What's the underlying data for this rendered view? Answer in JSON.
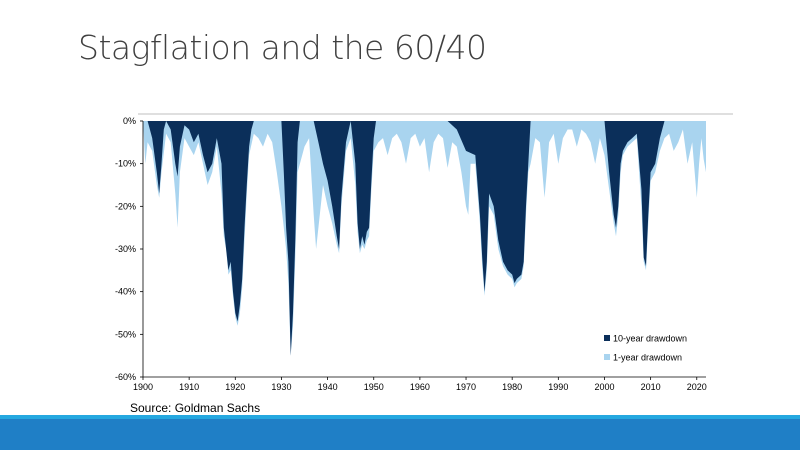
{
  "slide": {
    "title": "Stagflation and the 60/40",
    "source": "Source: Goldman Sachs"
  },
  "chart_data": {
    "type": "area",
    "title": "",
    "xlabel": "",
    "ylabel": "",
    "xlim": [
      1900,
      2022
    ],
    "ylim": [
      -0.6,
      0
    ],
    "x_ticks": [
      {
        "value": 1900,
        "label": "1900"
      },
      {
        "value": 1910,
        "label": "1910"
      },
      {
        "value": 1920,
        "label": "1920"
      },
      {
        "value": 1930,
        "label": "1930"
      },
      {
        "value": 1940,
        "label": "1940"
      },
      {
        "value": 1950,
        "label": "1950"
      },
      {
        "value": 1960,
        "label": "1960"
      },
      {
        "value": 1970,
        "label": "1970"
      },
      {
        "value": 1980,
        "label": "1980"
      },
      {
        "value": 1990,
        "label": "1990"
      },
      {
        "value": 2000,
        "label": "2000"
      },
      {
        "value": 2010,
        "label": "2010"
      },
      {
        "value": 2020,
        "label": "2020"
      }
    ],
    "y_ticks": [
      {
        "value": 0,
        "label": "0%"
      },
      {
        "value": -0.1,
        "label": "-10%"
      },
      {
        "value": -0.2,
        "label": "-20%"
      },
      {
        "value": -0.3,
        "label": "-30%"
      },
      {
        "value": -0.4,
        "label": "-40%"
      },
      {
        "value": -0.5,
        "label": "-50%"
      },
      {
        "value": -0.6,
        "label": "-60%"
      }
    ],
    "grid": false,
    "legend_position": "bottom-right",
    "series": [
      {
        "name": "10-year drawdown",
        "color": "#0b2f5a",
        "points": [
          [
            1900,
            0
          ],
          [
            1901,
            0
          ],
          [
            1902,
            -0.04
          ],
          [
            1903,
            -0.12
          ],
          [
            1903.5,
            -0.17
          ],
          [
            1904,
            -0.1
          ],
          [
            1904.5,
            -0.02
          ],
          [
            1905,
            0
          ],
          [
            1906,
            -0.02
          ],
          [
            1907,
            -0.1
          ],
          [
            1907.5,
            -0.13
          ],
          [
            1908,
            -0.06
          ],
          [
            1909,
            -0.01
          ],
          [
            1910,
            -0.02
          ],
          [
            1911,
            -0.05
          ],
          [
            1912,
            -0.03
          ],
          [
            1913,
            -0.08
          ],
          [
            1914,
            -0.12
          ],
          [
            1915,
            -0.1
          ],
          [
            1916,
            -0.04
          ],
          [
            1917,
            -0.1
          ],
          [
            1917.5,
            -0.25
          ],
          [
            1918,
            -0.3
          ],
          [
            1918.5,
            -0.35
          ],
          [
            1919,
            -0.33
          ],
          [
            1919.5,
            -0.4
          ],
          [
            1920,
            -0.45
          ],
          [
            1920.5,
            -0.47
          ],
          [
            1921,
            -0.43
          ],
          [
            1921.5,
            -0.37
          ],
          [
            1922,
            -0.25
          ],
          [
            1922.5,
            -0.15
          ],
          [
            1923,
            -0.06
          ],
          [
            1923.5,
            -0.02
          ],
          [
            1924,
            0
          ],
          [
            1930,
            0
          ],
          [
            1930.5,
            -0.12
          ],
          [
            1931,
            -0.25
          ],
          [
            1931.5,
            -0.33
          ],
          [
            1932,
            -0.55
          ],
          [
            1932.5,
            -0.45
          ],
          [
            1933,
            -0.28
          ],
          [
            1933.5,
            -0.05
          ],
          [
            1934,
            0
          ],
          [
            1937,
            0
          ],
          [
            1938,
            -0.05
          ],
          [
            1939,
            -0.1
          ],
          [
            1940,
            -0.14
          ],
          [
            1941,
            -0.2
          ],
          [
            1942,
            -0.27
          ],
          [
            1942.5,
            -0.3
          ],
          [
            1943,
            -0.18
          ],
          [
            1944,
            -0.05
          ],
          [
            1945,
            0
          ],
          [
            1946,
            -0.1
          ],
          [
            1946.5,
            -0.24
          ],
          [
            1947,
            -0.3
          ],
          [
            1947.5,
            -0.27
          ],
          [
            1948,
            -0.29
          ],
          [
            1948.5,
            -0.26
          ],
          [
            1949,
            -0.25
          ],
          [
            1949.5,
            -0.14
          ],
          [
            1950,
            -0.04
          ],
          [
            1950.5,
            0
          ],
          [
            1966,
            0
          ],
          [
            1968,
            -0.02
          ],
          [
            1970,
            -0.07
          ],
          [
            1972,
            -0.08
          ],
          [
            1973,
            -0.22
          ],
          [
            1973.5,
            -0.32
          ],
          [
            1974,
            -0.4
          ],
          [
            1974.5,
            -0.33
          ],
          [
            1975,
            -0.17
          ],
          [
            1976,
            -0.2
          ],
          [
            1977,
            -0.28
          ],
          [
            1978,
            -0.33
          ],
          [
            1979,
            -0.35
          ],
          [
            1980,
            -0.36
          ],
          [
            1980.5,
            -0.38
          ],
          [
            1981,
            -0.37
          ],
          [
            1982,
            -0.36
          ],
          [
            1982.5,
            -0.33
          ],
          [
            1983,
            -0.2
          ],
          [
            1983.5,
            -0.1
          ],
          [
            1984,
            0
          ],
          [
            2000,
            0
          ],
          [
            2001,
            -0.12
          ],
          [
            2002,
            -0.22
          ],
          [
            2002.5,
            -0.25
          ],
          [
            2003,
            -0.2
          ],
          [
            2003.5,
            -0.1
          ],
          [
            2004,
            -0.07
          ],
          [
            2005,
            -0.05
          ],
          [
            2006,
            -0.04
          ],
          [
            2007,
            -0.03
          ],
          [
            2008,
            -0.16
          ],
          [
            2008.5,
            -0.32
          ],
          [
            2009,
            -0.34
          ],
          [
            2009.5,
            -0.22
          ],
          [
            2010,
            -0.12
          ],
          [
            2011,
            -0.1
          ],
          [
            2012,
            -0.04
          ],
          [
            2013,
            0
          ],
          [
            2022,
            0
          ]
        ]
      },
      {
        "name": "1-year drawdown",
        "color": "#a9d4ef",
        "points": [
          [
            1900,
            0
          ],
          [
            1900.5,
            -0.1
          ],
          [
            1901,
            -0.05
          ],
          [
            1902,
            -0.07
          ],
          [
            1903,
            -0.15
          ],
          [
            1903.5,
            -0.18
          ],
          [
            1904,
            -0.12
          ],
          [
            1905,
            -0.03
          ],
          [
            1906,
            -0.05
          ],
          [
            1907,
            -0.17
          ],
          [
            1907.5,
            -0.25
          ],
          [
            1908,
            -0.12
          ],
          [
            1909,
            -0.04
          ],
          [
            1910,
            -0.06
          ],
          [
            1911,
            -0.08
          ],
          [
            1912,
            -0.05
          ],
          [
            1913,
            -0.1
          ],
          [
            1914,
            -0.15
          ],
          [
            1915,
            -0.12
          ],
          [
            1916,
            -0.06
          ],
          [
            1917,
            -0.17
          ],
          [
            1917.5,
            -0.27
          ],
          [
            1918,
            -0.3
          ],
          [
            1918.5,
            -0.36
          ],
          [
            1919,
            -0.35
          ],
          [
            1919.5,
            -0.41
          ],
          [
            1920,
            -0.46
          ],
          [
            1920.5,
            -0.48
          ],
          [
            1921,
            -0.45
          ],
          [
            1921.5,
            -0.39
          ],
          [
            1922,
            -0.28
          ],
          [
            1922.5,
            -0.17
          ],
          [
            1923,
            -0.08
          ],
          [
            1924,
            -0.03
          ],
          [
            1925,
            -0.04
          ],
          [
            1926,
            -0.06
          ],
          [
            1927,
            -0.03
          ],
          [
            1928,
            -0.05
          ],
          [
            1929,
            -0.12
          ],
          [
            1930,
            -0.2
          ],
          [
            1930.5,
            -0.25
          ],
          [
            1931,
            -0.3
          ],
          [
            1931.5,
            -0.38
          ],
          [
            1932,
            -0.55
          ],
          [
            1932.5,
            -0.48
          ],
          [
            1933,
            -0.32
          ],
          [
            1933.5,
            -0.12
          ],
          [
            1934,
            -0.1
          ],
          [
            1935,
            -0.06
          ],
          [
            1936,
            -0.04
          ],
          [
            1937,
            -0.22
          ],
          [
            1937.5,
            -0.3
          ],
          [
            1938,
            -0.25
          ],
          [
            1939,
            -0.15
          ],
          [
            1940,
            -0.2
          ],
          [
            1941,
            -0.24
          ],
          [
            1942,
            -0.29
          ],
          [
            1942.5,
            -0.31
          ],
          [
            1943,
            -0.2
          ],
          [
            1944,
            -0.07
          ],
          [
            1945,
            -0.04
          ],
          [
            1946,
            -0.15
          ],
          [
            1946.5,
            -0.26
          ],
          [
            1947,
            -0.31
          ],
          [
            1947.5,
            -0.29
          ],
          [
            1948,
            -0.3
          ],
          [
            1948.5,
            -0.28
          ],
          [
            1949,
            -0.27
          ],
          [
            1949.5,
            -0.16
          ],
          [
            1950,
            -0.07
          ],
          [
            1951,
            -0.05
          ],
          [
            1952,
            -0.04
          ],
          [
            1953,
            -0.08
          ],
          [
            1954,
            -0.04
          ],
          [
            1955,
            -0.03
          ],
          [
            1956,
            -0.05
          ],
          [
            1957,
            -0.1
          ],
          [
            1958,
            -0.04
          ],
          [
            1959,
            -0.03
          ],
          [
            1960,
            -0.06
          ],
          [
            1961,
            -0.04
          ],
          [
            1962,
            -0.12
          ],
          [
            1963,
            -0.05
          ],
          [
            1964,
            -0.03
          ],
          [
            1965,
            -0.04
          ],
          [
            1966,
            -0.11
          ],
          [
            1967,
            -0.05
          ],
          [
            1968,
            -0.06
          ],
          [
            1969,
            -0.12
          ],
          [
            1970,
            -0.2
          ],
          [
            1970.5,
            -0.22
          ],
          [
            1971,
            -0.1
          ],
          [
            1972,
            -0.1
          ],
          [
            1973,
            -0.24
          ],
          [
            1973.5,
            -0.34
          ],
          [
            1974,
            -0.41
          ],
          [
            1974.5,
            -0.35
          ],
          [
            1975,
            -0.2
          ],
          [
            1976,
            -0.22
          ],
          [
            1977,
            -0.3
          ],
          [
            1978,
            -0.34
          ],
          [
            1979,
            -0.36
          ],
          [
            1980,
            -0.37
          ],
          [
            1980.5,
            -0.39
          ],
          [
            1981,
            -0.38
          ],
          [
            1982,
            -0.37
          ],
          [
            1982.5,
            -0.34
          ],
          [
            1983,
            -0.22
          ],
          [
            1983.5,
            -0.12
          ],
          [
            1984,
            -0.1
          ],
          [
            1985,
            -0.04
          ],
          [
            1986,
            -0.05
          ],
          [
            1987,
            -0.18
          ],
          [
            1987.5,
            -0.12
          ],
          [
            1988,
            -0.05
          ],
          [
            1989,
            -0.03
          ],
          [
            1990,
            -0.1
          ],
          [
            1991,
            -0.04
          ],
          [
            1992,
            -0.02
          ],
          [
            1993,
            -0.02
          ],
          [
            1994,
            -0.06
          ],
          [
            1995,
            -0.02
          ],
          [
            1996,
            -0.03
          ],
          [
            1997,
            -0.05
          ],
          [
            1998,
            -0.1
          ],
          [
            1999,
            -0.04
          ],
          [
            2000,
            -0.08
          ],
          [
            2001,
            -0.16
          ],
          [
            2002,
            -0.24
          ],
          [
            2002.5,
            -0.27
          ],
          [
            2003,
            -0.22
          ],
          [
            2003.5,
            -0.12
          ],
          [
            2004,
            -0.08
          ],
          [
            2005,
            -0.06
          ],
          [
            2006,
            -0.05
          ],
          [
            2007,
            -0.04
          ],
          [
            2008,
            -0.2
          ],
          [
            2008.5,
            -0.33
          ],
          [
            2009,
            -0.35
          ],
          [
            2009.5,
            -0.24
          ],
          [
            2010,
            -0.14
          ],
          [
            2011,
            -0.12
          ],
          [
            2012,
            -0.07
          ],
          [
            2013,
            -0.04
          ],
          [
            2014,
            -0.03
          ],
          [
            2015,
            -0.07
          ],
          [
            2016,
            -0.05
          ],
          [
            2017,
            -0.02
          ],
          [
            2018,
            -0.1
          ],
          [
            2019,
            -0.05
          ],
          [
            2020,
            -0.18
          ],
          [
            2020.5,
            -0.1
          ],
          [
            2021,
            -0.04
          ],
          [
            2021.5,
            -0.09
          ],
          [
            2022,
            -0.12
          ]
        ]
      }
    ]
  }
}
